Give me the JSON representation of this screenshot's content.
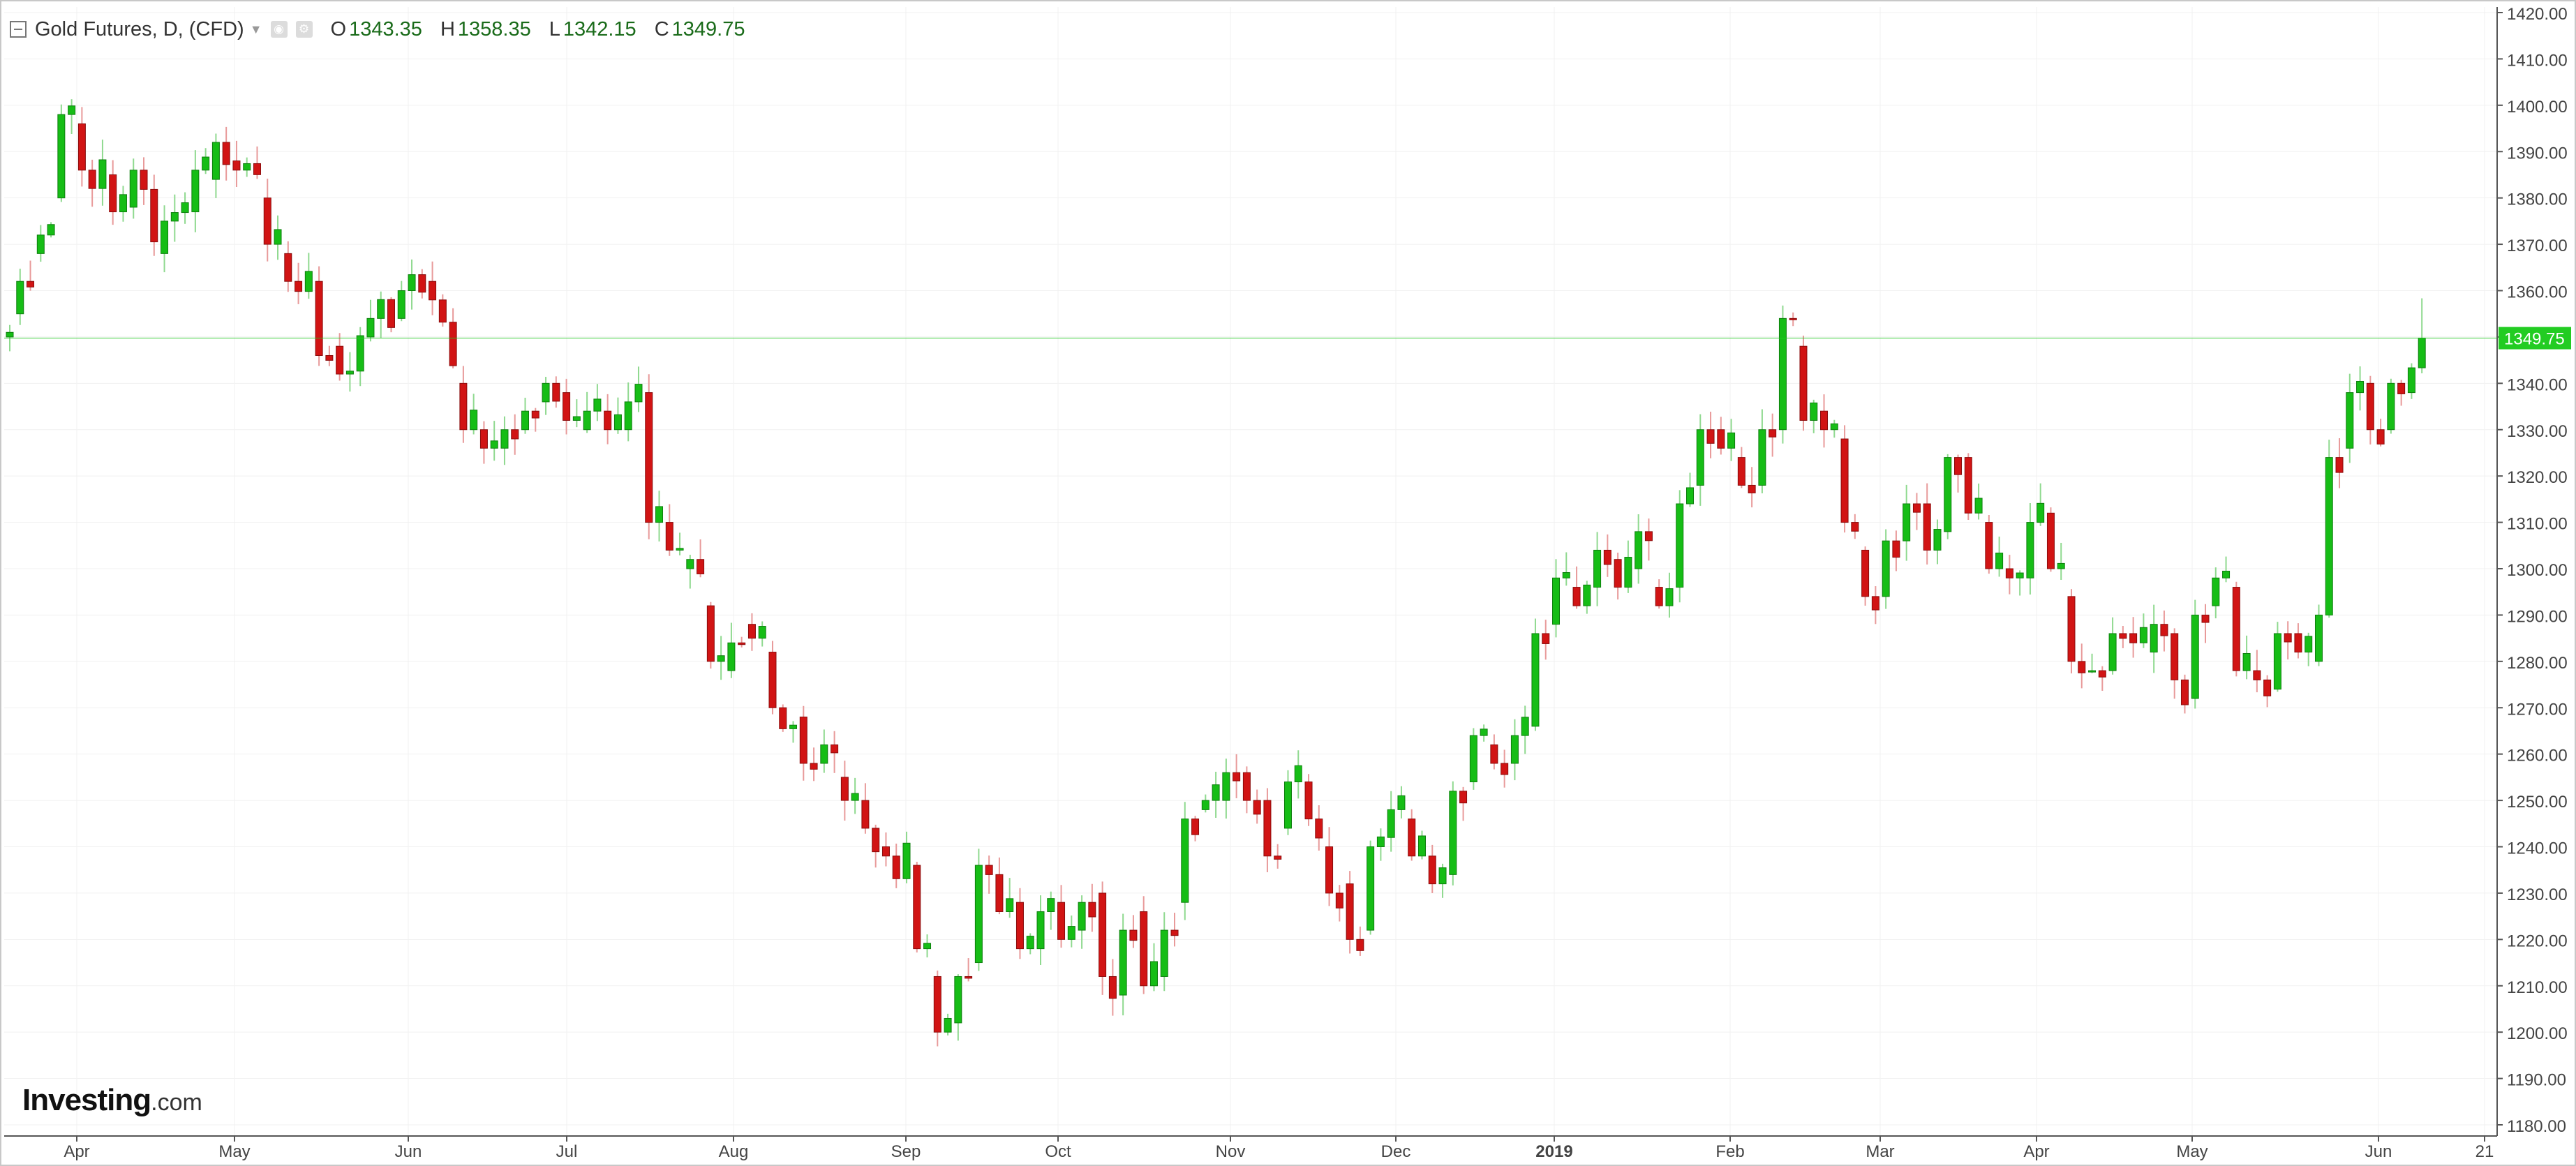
{
  "header": {
    "symbol": "Gold Futures, D, (CFD)",
    "ohlc": {
      "o_label": "O",
      "o": "1343.35",
      "h_label": "H",
      "h": "1358.35",
      "l_label": "L",
      "l": "1342.15",
      "c_label": "C",
      "c": "1349.75"
    }
  },
  "watermark": {
    "brand": "Investing",
    "suffix": ".com"
  },
  "colors": {
    "up": "#16bd16",
    "down": "#d11414",
    "wick_up": "#8fd98f",
    "wick_down": "#e89a9a",
    "last_price": "#22cc22",
    "grid": "#f1f1f1",
    "axis": "#555555"
  },
  "chart_data": {
    "type": "candlestick",
    "interval": "D",
    "ylim": [
      1180,
      1420
    ],
    "y_ticks": [
      "1180.00",
      "1190.00",
      "1200.00",
      "1210.00",
      "1220.00",
      "1230.00",
      "1240.00",
      "1250.00",
      "1260.00",
      "1270.00",
      "1280.00",
      "1290.00",
      "1300.00",
      "1310.00",
      "1320.00",
      "1330.00",
      "1340.00",
      "1350.00",
      "1360.00",
      "1370.00",
      "1380.00",
      "1390.00",
      "1400.00",
      "1410.00",
      "1420.00"
    ],
    "x_ticks": [
      {
        "label": "Apr",
        "bold": false
      },
      {
        "label": "May",
        "bold": false
      },
      {
        "label": "Jun",
        "bold": false
      },
      {
        "label": "Jul",
        "bold": false
      },
      {
        "label": "Aug",
        "bold": false
      },
      {
        "label": "Sep",
        "bold": false
      },
      {
        "label": "Oct",
        "bold": false
      },
      {
        "label": "Nov",
        "bold": false
      },
      {
        "label": "Dec",
        "bold": false
      },
      {
        "label": "2019",
        "bold": true
      },
      {
        "label": "Feb",
        "bold": false
      },
      {
        "label": "Mar",
        "bold": false
      },
      {
        "label": "Apr",
        "bold": false
      },
      {
        "label": "May",
        "bold": false
      },
      {
        "label": "Jun",
        "bold": false
      },
      {
        "label": "21",
        "bold": false
      }
    ],
    "last_price": {
      "value": 1349.75,
      "label": "1349.75"
    },
    "anchors": [
      [
        0,
        1350,
        1351
      ],
      [
        1,
        1355,
        1362
      ],
      [
        3,
        1368,
        1372
      ],
      [
        5,
        1380,
        1398
      ],
      [
        7,
        1396,
        1386
      ],
      [
        10,
        1385,
        1377
      ],
      [
        12,
        1378,
        1386
      ],
      [
        15,
        1368,
        1375
      ],
      [
        18,
        1377,
        1386
      ],
      [
        20,
        1384,
        1392
      ],
      [
        22,
        1388,
        1386
      ],
      [
        25,
        1380,
        1370
      ],
      [
        27,
        1368,
        1362
      ],
      [
        30,
        1362,
        1346
      ],
      [
        32,
        1348,
        1342
      ],
      [
        35,
        1350,
        1354
      ],
      [
        38,
        1354,
        1360
      ],
      [
        41,
        1362,
        1358
      ],
      [
        44,
        1340,
        1330
      ],
      [
        46,
        1330,
        1326
      ],
      [
        48,
        1326,
        1330
      ],
      [
        50,
        1330,
        1334
      ],
      [
        52,
        1336,
        1340
      ],
      [
        54,
        1338,
        1332
      ],
      [
        56,
        1330,
        1334
      ],
      [
        58,
        1334,
        1330
      ],
      [
        60,
        1330,
        1336
      ],
      [
        62,
        1338,
        1310
      ],
      [
        64,
        1310,
        1304
      ],
      [
        66,
        1300,
        1302
      ],
      [
        68,
        1292,
        1280
      ],
      [
        70,
        1278,
        1284
      ],
      [
        72,
        1288,
        1285
      ],
      [
        74,
        1282,
        1270
      ],
      [
        77,
        1268,
        1258
      ],
      [
        79,
        1258,
        1262
      ],
      [
        81,
        1255,
        1250
      ],
      [
        83,
        1250,
        1244
      ],
      [
        85,
        1240,
        1238
      ],
      [
        88,
        1236,
        1218
      ],
      [
        90,
        1212,
        1200
      ],
      [
        92,
        1202,
        1212
      ],
      [
        94,
        1215,
        1236
      ],
      [
        96,
        1234,
        1226
      ],
      [
        98,
        1228,
        1218
      ],
      [
        100,
        1218,
        1226
      ],
      [
        102,
        1228,
        1220
      ],
      [
        104,
        1222,
        1228
      ],
      [
        106,
        1230,
        1212
      ],
      [
        108,
        1208,
        1222
      ],
      [
        110,
        1226,
        1210
      ],
      [
        112,
        1212,
        1222
      ],
      [
        114,
        1228,
        1246
      ],
      [
        116,
        1248,
        1250
      ],
      [
        118,
        1250,
        1256
      ],
      [
        120,
        1256,
        1250
      ],
      [
        122,
        1250,
        1238
      ],
      [
        124,
        1244,
        1254
      ],
      [
        126,
        1254,
        1246
      ],
      [
        128,
        1240,
        1230
      ],
      [
        130,
        1232,
        1220
      ],
      [
        132,
        1222,
        1240
      ],
      [
        134,
        1242,
        1248
      ],
      [
        136,
        1246,
        1238
      ],
      [
        138,
        1238,
        1232
      ],
      [
        140,
        1234,
        1252
      ],
      [
        142,
        1254,
        1264
      ],
      [
        144,
        1262,
        1258
      ],
      [
        146,
        1258,
        1264
      ],
      [
        148,
        1266,
        1286
      ],
      [
        150,
        1288,
        1298
      ],
      [
        152,
        1296,
        1292
      ],
      [
        154,
        1296,
        1304
      ],
      [
        156,
        1302,
        1296
      ],
      [
        158,
        1300,
        1308
      ],
      [
        160,
        1296,
        1292
      ],
      [
        162,
        1296,
        1314
      ],
      [
        164,
        1318,
        1330
      ],
      [
        166,
        1330,
        1326
      ],
      [
        168,
        1324,
        1318
      ],
      [
        170,
        1318,
        1330
      ],
      [
        172,
        1330,
        1354
      ],
      [
        174,
        1348,
        1332
      ],
      [
        176,
        1334,
        1330
      ],
      [
        178,
        1328,
        1310
      ],
      [
        180,
        1304,
        1294
      ],
      [
        182,
        1294,
        1306
      ],
      [
        184,
        1306,
        1314
      ],
      [
        186,
        1314,
        1304
      ],
      [
        188,
        1308,
        1324
      ],
      [
        190,
        1324,
        1312
      ],
      [
        192,
        1310,
        1300
      ],
      [
        194,
        1300,
        1298
      ],
      [
        196,
        1298,
        1310
      ],
      [
        198,
        1312,
        1300
      ],
      [
        200,
        1294,
        1280
      ],
      [
        202,
        1278,
        1278
      ],
      [
        204,
        1278,
        1286
      ],
      [
        206,
        1286,
        1284
      ],
      [
        208,
        1282,
        1288
      ],
      [
        210,
        1286,
        1276
      ],
      [
        212,
        1272,
        1290
      ],
      [
        214,
        1292,
        1298
      ],
      [
        216,
        1296,
        1278
      ],
      [
        218,
        1278,
        1276
      ],
      [
        220,
        1274,
        1286
      ],
      [
        222,
        1286,
        1282
      ],
      [
        224,
        1280,
        1290
      ],
      [
        225,
        1290,
        1324
      ],
      [
        227,
        1326,
        1338
      ],
      [
        229,
        1340,
        1330
      ],
      [
        231,
        1330,
        1340
      ],
      [
        233,
        1338,
        1343.35
      ],
      [
        234,
        1343.35,
        1349.75
      ]
    ]
  }
}
